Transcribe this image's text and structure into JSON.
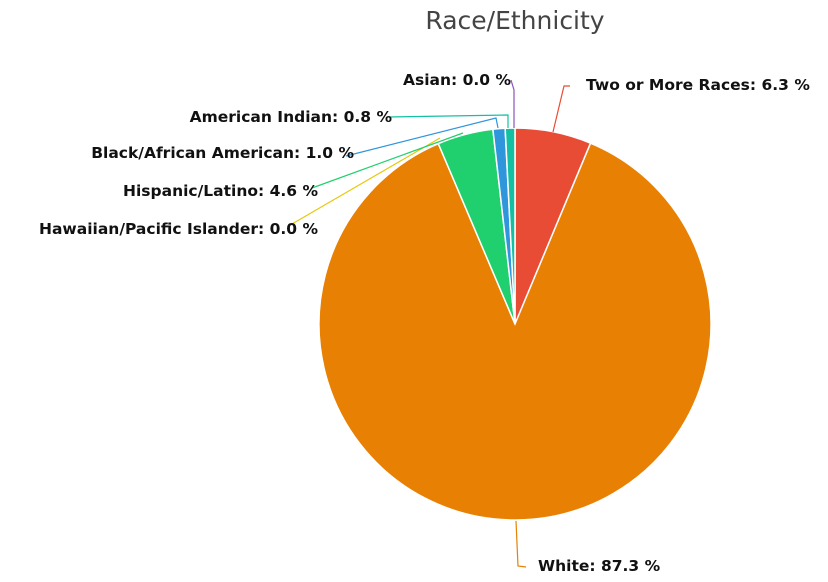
{
  "chart_data": {
    "type": "pie",
    "title": "Race/Ethnicity",
    "slices": [
      {
        "name": "Two or More Races",
        "value": 6.3,
        "label": "Two or More Races: 6.3 %",
        "color": "#e84c35"
      },
      {
        "name": "White",
        "value": 87.3,
        "label": "White: 87.3 %",
        "color": "#e88003"
      },
      {
        "name": "Hawaiian/Pacific Islander",
        "value": 0.0,
        "label": "Hawaiian/Pacific Islander: 0.0 %",
        "color": "#e8c80c"
      },
      {
        "name": "Hispanic/Latino",
        "value": 4.6,
        "label": "Hispanic/Latino: 4.6 %",
        "color": "#20d06e"
      },
      {
        "name": "Black/African American",
        "value": 1.0,
        "label": "Black/African American: 1.0 %",
        "color": "#2f96dc"
      },
      {
        "name": "American Indian",
        "value": 0.8,
        "label": "American Indian: 0.8 %",
        "color": "#14c0a2"
      },
      {
        "name": "Asian",
        "value": 0.0,
        "label": "Asian: 0.0 %",
        "color": "#8f52bb"
      }
    ],
    "start_angle": "12 o'clock",
    "direction": "clockwise",
    "legend": "none"
  }
}
